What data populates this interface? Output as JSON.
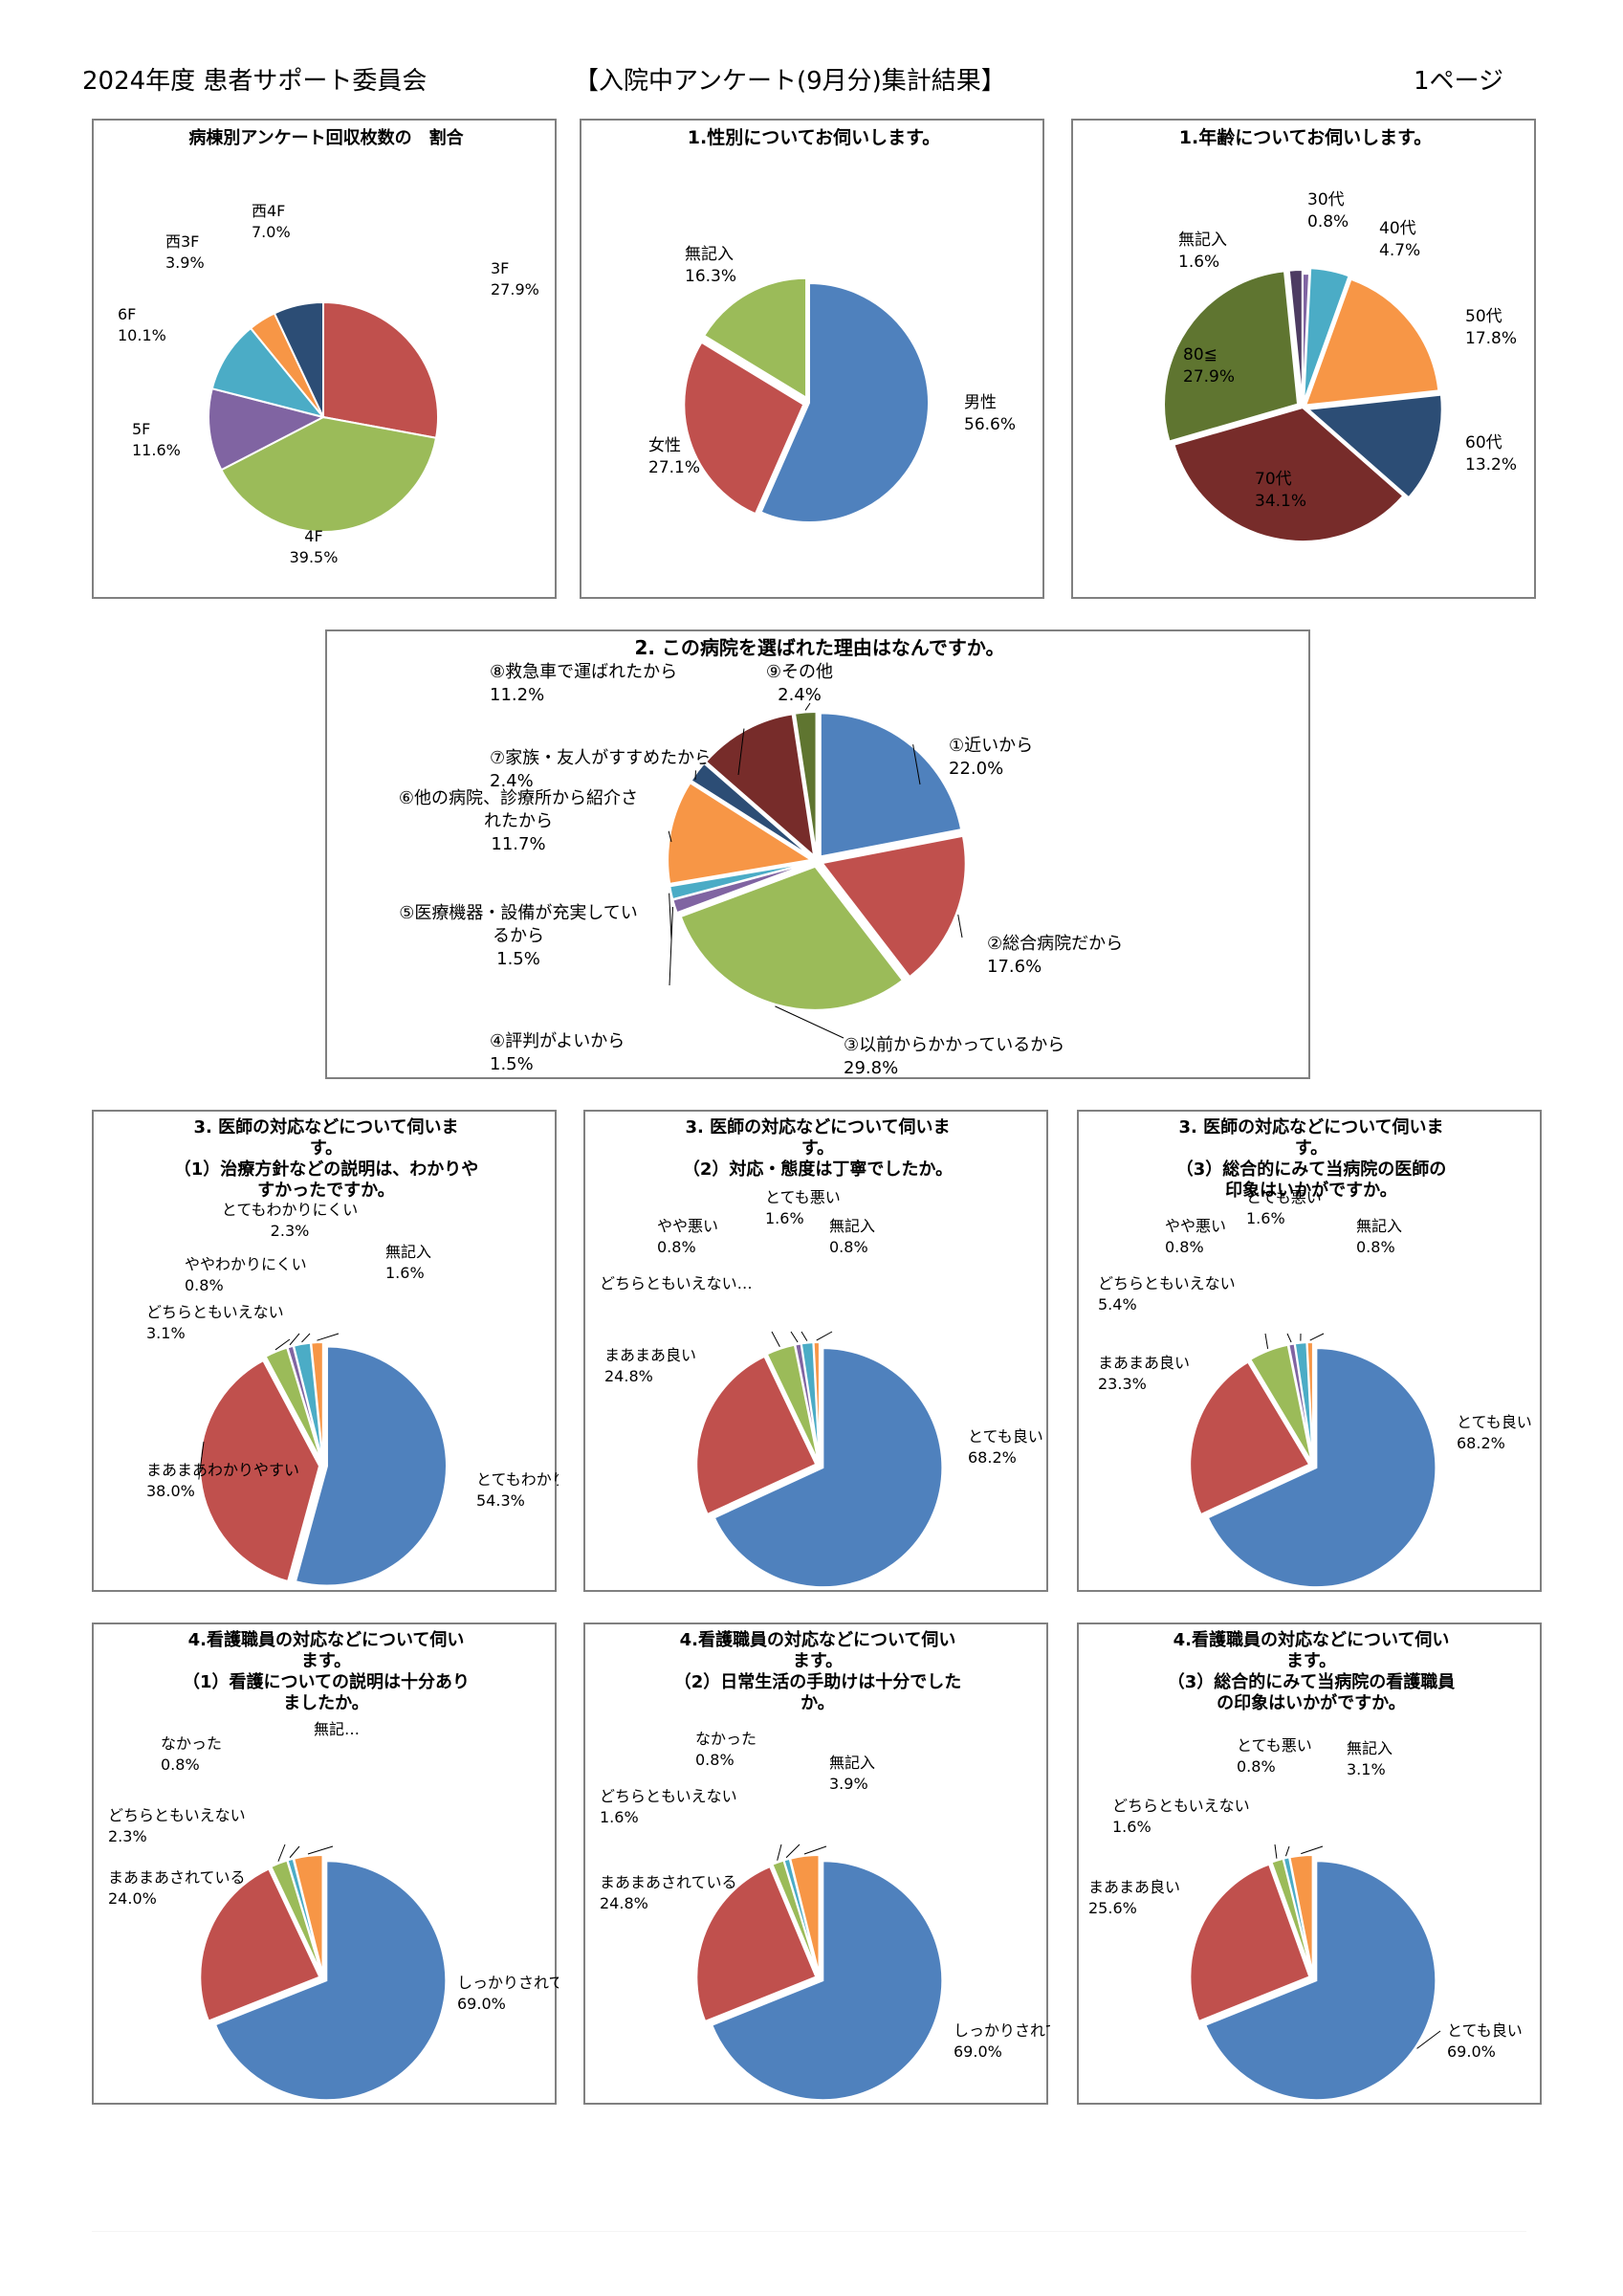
{
  "header": {
    "left": "2024年度 患者サポート委員会",
    "center": "【入院中アンケート(9月分)集計結果】",
    "right": "1ページ"
  },
  "chart_data": [
    {
      "type": "pie",
      "title_lines": [
        "病棟別アンケート回収枚数の　割合"
      ],
      "slices": [
        {
          "label": "3F",
          "value": 27.9,
          "pct": "27.9%",
          "color": "#c0504d"
        },
        {
          "label": "4F",
          "value": 39.5,
          "pct": "39.5%",
          "color": "#9bbb59"
        },
        {
          "label": "5F",
          "value": 11.6,
          "pct": "11.6%",
          "color": "#8064a2"
        },
        {
          "label": "6F",
          "value": 10.1,
          "pct": "10.1%",
          "color": "#4bacc6"
        },
        {
          "label": "西3F",
          "value": 3.9,
          "pct": "3.9%",
          "color": "#f79646"
        },
        {
          "label": "西4F",
          "value": 7.0,
          "pct": "7.0%",
          "color": "#2c4d75"
        }
      ]
    },
    {
      "type": "pie",
      "title_lines": [
        "1.性別についてお伺いします。"
      ],
      "slices": [
        {
          "label": "男性",
          "value": 56.6,
          "pct": "56.6%",
          "color": "#4f81bd"
        },
        {
          "label": "女性",
          "value": 27.1,
          "pct": "27.1%",
          "color": "#c0504d"
        },
        {
          "label": "無記入",
          "value": 16.3,
          "pct": "16.3%",
          "color": "#9bbb59"
        }
      ]
    },
    {
      "type": "pie",
      "title_lines": [
        "1.年齢についてお伺いします。"
      ],
      "slices": [
        {
          "label": "30代",
          "value": 0.8,
          "pct": "0.8%",
          "color": "#8064a2"
        },
        {
          "label": "40代",
          "value": 4.7,
          "pct": "4.7%",
          "color": "#4bacc6"
        },
        {
          "label": "50代",
          "value": 17.8,
          "pct": "17.8%",
          "color": "#f79646"
        },
        {
          "label": "60代",
          "value": 13.2,
          "pct": "13.2%",
          "color": "#2c4d75"
        },
        {
          "label": "70代",
          "value": 34.1,
          "pct": "34.1%",
          "color": "#772c2a"
        },
        {
          "label": "80≦",
          "value": 27.9,
          "pct": "27.9%",
          "color": "#5f7530"
        },
        {
          "label": "無記入",
          "value": 1.6,
          "pct": "1.6%",
          "color": "#4d3b62"
        }
      ]
    },
    {
      "type": "pie",
      "title_lines": [
        "2. この病院を選ばれた理由はなんですか。"
      ],
      "slices": [
        {
          "label": "①近いから",
          "value": 22.0,
          "pct": "22.0%",
          "color": "#4f81bd"
        },
        {
          "label": "②総合病院だから",
          "value": 17.6,
          "pct": "17.6%",
          "color": "#c0504d"
        },
        {
          "label": "③以前からかかっているから",
          "value": 29.8,
          "pct": "29.8%",
          "color": "#9bbb59"
        },
        {
          "label": "④評判がよいから",
          "value": 1.5,
          "pct": "1.5%",
          "color": "#8064a2"
        },
        {
          "label": "⑤医療機器・設備が充実しているから",
          "value": 1.5,
          "pct": "1.5%",
          "color": "#4bacc6"
        },
        {
          "label": "⑥他の病院、診療所から紹介されたから",
          "value": 11.7,
          "pct": "11.7%",
          "color": "#f79646"
        },
        {
          "label": "⑦家族・友人がすすめたから",
          "value": 2.4,
          "pct": "2.4%",
          "color": "#2c4d75"
        },
        {
          "label": "⑧救急車で運ばれたから",
          "value": 11.2,
          "pct": "11.2%",
          "color": "#772c2a"
        },
        {
          "label": "⑨その他",
          "value": 2.4,
          "pct": "2.4%",
          "color": "#5f7530"
        }
      ]
    },
    {
      "type": "pie",
      "title_lines": [
        "3. 医師の対応などについて伺いま",
        "す。",
        "（1）治療方針などの説明は、わかりや",
        "すかったですか。"
      ],
      "slices": [
        {
          "label": "とてもわかりやすい",
          "value": 54.3,
          "pct": "54.3%",
          "color": "#4f81bd"
        },
        {
          "label": "まあまあわかりやすい",
          "value": 38.0,
          "pct": "38.0%",
          "color": "#c0504d"
        },
        {
          "label": "どちらともいえない",
          "value": 3.1,
          "pct": "3.1%",
          "color": "#9bbb59"
        },
        {
          "label": "ややわかりにくい",
          "value": 0.8,
          "pct": "0.8%",
          "color": "#8064a2"
        },
        {
          "label": "とてもわかりにくい",
          "value": 2.3,
          "pct": "2.3%",
          "color": "#4bacc6"
        },
        {
          "label": "無記入",
          "value": 1.6,
          "pct": "1.6%",
          "color": "#f79646"
        }
      ]
    },
    {
      "type": "pie",
      "title_lines": [
        "3. 医師の対応などについて伺いま",
        "す。",
        "（2）対応・態度は丁寧でしたか。"
      ],
      "slices": [
        {
          "label": "とても良い",
          "value": 68.2,
          "pct": "68.2%",
          "color": "#4f81bd"
        },
        {
          "label": "まあまあ良い",
          "value": 24.8,
          "pct": "24.8%",
          "color": "#c0504d"
        },
        {
          "label": "どちらともいえない…",
          "value": 3.9,
          "pct": "",
          "color": "#9bbb59"
        },
        {
          "label": "やや悪い",
          "value": 0.8,
          "pct": "0.8%",
          "color": "#8064a2"
        },
        {
          "label": "とても悪い",
          "value": 1.6,
          "pct": "1.6%",
          "color": "#4bacc6"
        },
        {
          "label": "無記入",
          "value": 0.8,
          "pct": "0.8%",
          "color": "#f79646"
        }
      ]
    },
    {
      "type": "pie",
      "title_lines": [
        "3. 医師の対応などについて伺いま",
        "す。",
        "（3）総合的にみて当病院の医師の",
        "印象はいかがですか。"
      ],
      "slices": [
        {
          "label": "とても良い",
          "value": 68.2,
          "pct": "68.2%",
          "color": "#4f81bd"
        },
        {
          "label": "まあまあ良い",
          "value": 23.3,
          "pct": "23.3%",
          "color": "#c0504d"
        },
        {
          "label": "どちらともいえない",
          "value": 5.4,
          "pct": "5.4%",
          "color": "#9bbb59"
        },
        {
          "label": "やや悪い",
          "value": 0.8,
          "pct": "0.8%",
          "color": "#8064a2"
        },
        {
          "label": "とても悪い",
          "value": 1.6,
          "pct": "1.6%",
          "color": "#4bacc6"
        },
        {
          "label": "無記入",
          "value": 0.8,
          "pct": "0.8%",
          "color": "#f79646"
        }
      ]
    },
    {
      "type": "pie",
      "title_lines": [
        "4.看護職員の対応などについて伺い",
        "ます。",
        "（1）看護についての説明は十分あり",
        "ましたか。"
      ],
      "slices": [
        {
          "label": "しっかりされている",
          "value": 69.0,
          "pct": "69.0%",
          "color": "#4f81bd"
        },
        {
          "label": "まあまあされている",
          "value": 24.0,
          "pct": "24.0%",
          "color": "#c0504d"
        },
        {
          "label": "どちらともいえない",
          "value": 2.3,
          "pct": "2.3%",
          "color": "#9bbb59"
        },
        {
          "label": "なかった",
          "value": 0.8,
          "pct": "0.8%",
          "color": "#4bacc6"
        },
        {
          "label": "無記…",
          "value": 3.9,
          "pct": "",
          "color": "#f79646"
        }
      ]
    },
    {
      "type": "pie",
      "title_lines": [
        "4.看護職員の対応などについて伺い",
        "ます。",
        "（2）日常生活の手助けは十分でした",
        "か。"
      ],
      "slices": [
        {
          "label": "しっかりされている",
          "value": 69.0,
          "pct": "69.0%",
          "color": "#4f81bd"
        },
        {
          "label": "まあまあされている",
          "value": 24.8,
          "pct": "24.8%",
          "color": "#c0504d"
        },
        {
          "label": "どちらともいえない",
          "value": 1.6,
          "pct": "1.6%",
          "color": "#9bbb59"
        },
        {
          "label": "なかった",
          "value": 0.8,
          "pct": "0.8%",
          "color": "#4bacc6"
        },
        {
          "label": "無記入",
          "value": 3.9,
          "pct": "3.9%",
          "color": "#f79646"
        }
      ]
    },
    {
      "type": "pie",
      "title_lines": [
        "4.看護職員の対応などについて伺い",
        "ます。",
        "（3）総合的にみて当病院の看護職員",
        "の印象はいかがですか。"
      ],
      "slices": [
        {
          "label": "とても良い",
          "value": 69.0,
          "pct": "69.0%",
          "color": "#4f81bd"
        },
        {
          "label": "まあまあ良い",
          "value": 25.6,
          "pct": "25.6%",
          "color": "#c0504d"
        },
        {
          "label": "どちらともいえない",
          "value": 1.6,
          "pct": "1.6%",
          "color": "#9bbb59"
        },
        {
          "label": "とても悪い",
          "value": 0.8,
          "pct": "0.8%",
          "color": "#4bacc6"
        },
        {
          "label": "無記入",
          "value": 3.1,
          "pct": "3.1%",
          "color": "#f79646"
        }
      ]
    }
  ]
}
